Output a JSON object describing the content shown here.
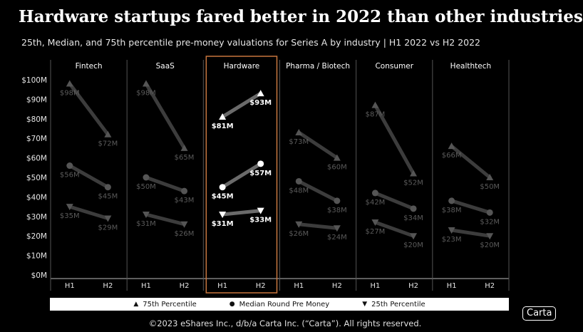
{
  "title": "Hardware startups fared better in 2022 than other industries",
  "subtitle": "25th, Median, and 75th percentile pre-money valuations for Series A by industry | H1 2022 vs H2 2022",
  "footer": "©2023 eShares Inc., d/b/a Carta Inc. (“Carta”). All rights reserved.",
  "logo": "Carta",
  "colors": {
    "background": "#000000",
    "highlight": "#c8763e",
    "active": "#ffffff",
    "muted": "#555555"
  },
  "legend": [
    {
      "symbol": "▲",
      "label": "75th Percentile"
    },
    {
      "symbol": "●",
      "label": "Median Round Pre Money"
    },
    {
      "symbol": "▼",
      "label": "25th Percentile"
    }
  ],
  "chart_data": {
    "type": "line",
    "periods": [
      "H1",
      "H2"
    ],
    "y_ticks": [
      "$0M",
      "$10M",
      "$20M",
      "$30M",
      "$40M",
      "$50M",
      "$60M",
      "$70M",
      "$80M",
      "$90M",
      "$100M"
    ],
    "ylim": [
      0,
      100
    ],
    "highlight_panel": "Hardware",
    "panels": [
      {
        "name": "Fintech",
        "p75": [
          98,
          72
        ],
        "median": [
          56,
          45
        ],
        "p25": [
          35,
          29
        ],
        "labels": {
          "p75": [
            "$98M",
            "$72M"
          ],
          "median": [
            "$56M",
            "$45M"
          ],
          "p25": [
            "$35M",
            "$29M"
          ]
        }
      },
      {
        "name": "SaaS",
        "p75": [
          98,
          65
        ],
        "median": [
          50,
          43
        ],
        "p25": [
          31,
          26
        ],
        "labels": {
          "p75": [
            "$98M",
            "$65M"
          ],
          "median": [
            "$50M",
            "$43M"
          ],
          "p25": [
            "$31M",
            "$26M"
          ]
        }
      },
      {
        "name": "Hardware",
        "p75": [
          81,
          93
        ],
        "median": [
          45,
          57
        ],
        "p25": [
          31,
          33
        ],
        "labels": {
          "p75": [
            "$81M",
            "$93M"
          ],
          "median": [
            "$45M",
            "$57M"
          ],
          "p25": [
            "$31M",
            "$33M"
          ]
        }
      },
      {
        "name": "Pharma / Biotech",
        "p75": [
          73,
          60
        ],
        "median": [
          48,
          38
        ],
        "p25": [
          26,
          24
        ],
        "labels": {
          "p75": [
            "$73M",
            "$60M"
          ],
          "median": [
            "$48M",
            "$38M"
          ],
          "p25": [
            "$26M",
            "$24M"
          ]
        }
      },
      {
        "name": "Consumer",
        "p75": [
          87,
          52
        ],
        "median": [
          42,
          34
        ],
        "p25": [
          27,
          20
        ],
        "labels": {
          "p75": [
            "$87M",
            "$52M"
          ],
          "median": [
            "$42M",
            "$34M"
          ],
          "p25": [
            "$27M",
            "$20M"
          ]
        }
      },
      {
        "name": "Healthtech",
        "p75": [
          66,
          50
        ],
        "median": [
          38,
          32
        ],
        "p25": [
          23,
          20
        ],
        "labels": {
          "p75": [
            "$66M",
            "$50M"
          ],
          "median": [
            "$38M",
            "$32M"
          ],
          "p25": [
            "$23M",
            "$20M"
          ]
        }
      }
    ]
  }
}
